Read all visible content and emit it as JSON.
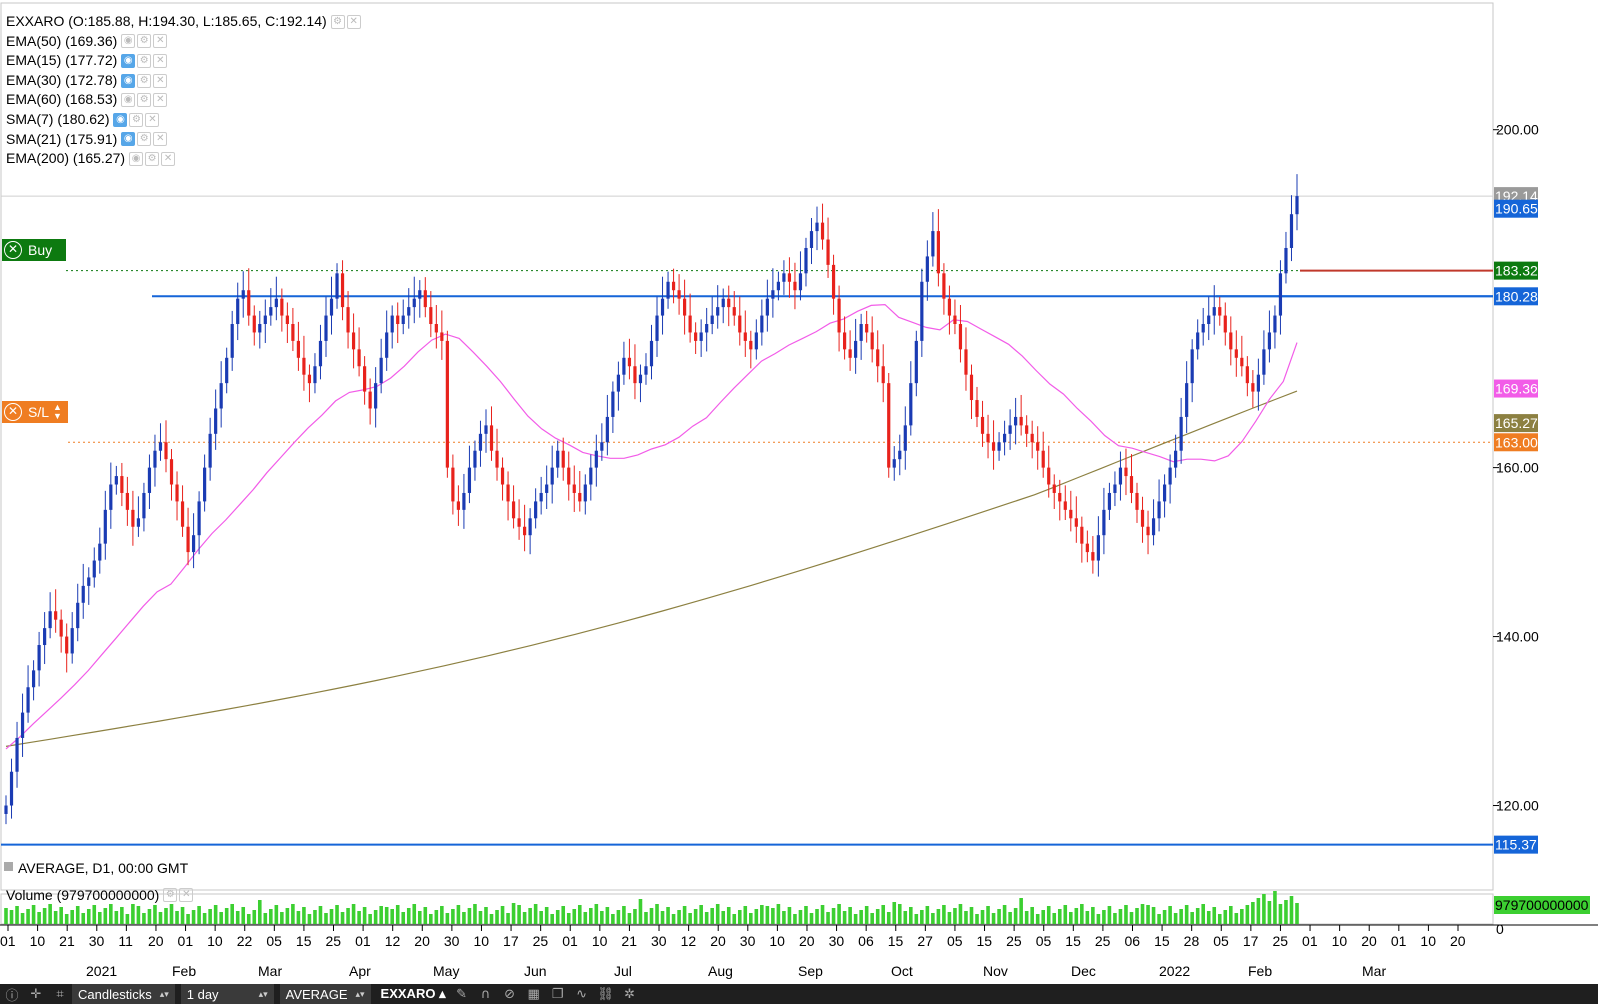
{
  "legend": {
    "main": "EXXARO (O:185.88, H:194.30, L:185.65, C:192.14)",
    "indicators": [
      {
        "label": "EMA(50) (169.36)",
        "visible": false
      },
      {
        "label": "EMA(15) (177.72)",
        "visible": true
      },
      {
        "label": "EMA(30) (172.78)",
        "visible": true
      },
      {
        "label": "EMA(60) (168.53)",
        "visible": false
      },
      {
        "label": "SMA(7) (180.62)",
        "visible": true
      },
      {
        "label": "SMA(21) (175.91)",
        "visible": true
      },
      {
        "label": "EMA(200) (165.27)",
        "visible": false
      }
    ]
  },
  "icons": {
    "eye": "eye-icon",
    "gear": "gear-icon",
    "close": "close-icon"
  },
  "tags": {
    "buy": "Buy",
    "sl": "S/L"
  },
  "footer": {
    "title": "AVERAGE, D1, 00:00 GMT",
    "volume": "Volume (979700000000)",
    "volume_axis": "979700000000",
    "volume_zero": "0"
  },
  "toolbar": {
    "chart_type": "Candlesticks",
    "interval": "1 day",
    "template": "AVERAGE",
    "symbol": "EXXARO"
  },
  "colors": {
    "up": "#1a3bb3",
    "down": "#e8221c",
    "ema50": "#f25ce8",
    "ema200": "#8c8041",
    "line_blue": "#1565d8",
    "buy": "#0d7a10",
    "sl": "#ef7d22",
    "volume": "#3ccf31"
  },
  "chart_data": {
    "type": "candlestick",
    "symbol": "EXXARO",
    "y_ticks": [
      200,
      160,
      140,
      120
    ],
    "y_tick_labels": [
      "200.00",
      "160.00",
      "140.00",
      "120.00"
    ],
    "ylim": [
      110,
      215
    ],
    "x_tick_labels": [
      "01",
      "10",
      "21",
      "30",
      "11",
      "20",
      "01",
      "10",
      "22",
      "05",
      "15",
      "25",
      "01",
      "12",
      "20",
      "30",
      "10",
      "17",
      "25",
      "01",
      "10",
      "21",
      "30",
      "12",
      "20",
      "30",
      "10",
      "20",
      "30",
      "06",
      "15",
      "27",
      "05",
      "15",
      "25",
      "05",
      "15",
      "25",
      "06",
      "15",
      "28",
      "05",
      "17",
      "25",
      "01",
      "10",
      "20",
      "01",
      "10",
      "20"
    ],
    "months": [
      "2021",
      "Feb",
      "Mar",
      "Apr",
      "May",
      "Jun",
      "Jul",
      "Aug",
      "Sep",
      "Oct",
      "Nov",
      "Dec",
      "2022",
      "Feb",
      "Mar"
    ],
    "price_levels": [
      {
        "label": "192.14",
        "value": 192.14,
        "kind": "last"
      },
      {
        "label": "190.65",
        "value": 190.65,
        "kind": "resistance"
      },
      {
        "label": "183.32",
        "value": 183.32,
        "kind": "buy"
      },
      {
        "label": "180.28",
        "value": 180.28,
        "kind": "resistance"
      },
      {
        "label": "169.36",
        "value": 169.36,
        "kind": "ema50"
      },
      {
        "label": "165.27",
        "value": 165.27,
        "kind": "ema200"
      },
      {
        "label": "163.00",
        "value": 163.0,
        "kind": "stop_loss"
      },
      {
        "label": "115.37",
        "value": 115.37,
        "kind": "support"
      }
    ],
    "closes": [
      120,
      124,
      128,
      131,
      134,
      136,
      139,
      141,
      143,
      142,
      140,
      138,
      141,
      144,
      146,
      147,
      149,
      151,
      155,
      158,
      159,
      157,
      155,
      153,
      154,
      157,
      160,
      162,
      163,
      161,
      158,
      156,
      153,
      150,
      152,
      156,
      160,
      164,
      167,
      170,
      173,
      177,
      180,
      181,
      178,
      176,
      177,
      178,
      179,
      180,
      178,
      177,
      175,
      173,
      171,
      170,
      172,
      175,
      178,
      180,
      183,
      179,
      176,
      174,
      172,
      169,
      167,
      170,
      173,
      176,
      178,
      177,
      178,
      179,
      180,
      181,
      179,
      177,
      176,
      175,
      160,
      156,
      155,
      157,
      160,
      162,
      164,
      165,
      162,
      160,
      158,
      156,
      154,
      153,
      152,
      154,
      156,
      157,
      158,
      160,
      162,
      160,
      158,
      157,
      156,
      158,
      160,
      162,
      163,
      166,
      169,
      171,
      173,
      172,
      170,
      171,
      172,
      175,
      178,
      180,
      182,
      181,
      180,
      178,
      176,
      175,
      176,
      177,
      178,
      179,
      180,
      179,
      178,
      176,
      175,
      174,
      176,
      178,
      180,
      181,
      182,
      183,
      182,
      181,
      183,
      186,
      188,
      189,
      187,
      184,
      180,
      176,
      174,
      173,
      175,
      177,
      176,
      174,
      172,
      170,
      160,
      161,
      162,
      165,
      170,
      175,
      182,
      185,
      188,
      183,
      180,
      178,
      177,
      174,
      171,
      168,
      166,
      164,
      163,
      162,
      163,
      164,
      165,
      166,
      165,
      164,
      163,
      162,
      160,
      158,
      157,
      156,
      155,
      154,
      153,
      151,
      150,
      149,
      152,
      155,
      157,
      158,
      160,
      159,
      157,
      155,
      153,
      152,
      154,
      156,
      158,
      160,
      162,
      166,
      170,
      174,
      176,
      177,
      178,
      179,
      178,
      176,
      174,
      173,
      172,
      170,
      169,
      171,
      174,
      176,
      178,
      183,
      186,
      190,
      192.14
    ],
    "ema50": [
      126.7,
      128.1,
      129.7,
      131.2,
      132.7,
      134.3,
      136.0,
      137.9,
      139.8,
      141.7,
      143.6,
      145.3,
      146.2,
      148.2,
      150.3,
      152.2,
      153.8,
      155.6,
      157.4,
      159.4,
      161.2,
      163.0,
      164.7,
      166.2,
      167.9,
      168.9,
      169.2,
      169.6,
      170.6,
      172.0,
      173.7,
      175.1,
      175.8,
      175.3,
      173.7,
      172.0,
      170.2,
      168.1,
      166.1,
      164.6,
      163.5,
      162.7,
      161.8,
      161.4,
      161.1,
      161.1,
      161.5,
      162.2,
      162.7,
      163.6,
      164.9,
      165.9,
      167.7,
      169.4,
      171.0,
      172.6,
      173.5,
      174.5,
      175.3,
      176.1,
      177.1,
      177.6,
      178.5,
      179.2,
      179.3,
      177.8,
      177.2,
      176.6,
      176.3,
      177.5,
      177.3,
      176.4,
      175.5,
      174.6,
      173.2,
      171.5,
      169.9,
      168.7,
      167.0,
      165.5,
      163.8,
      162.6,
      162.3,
      161.8,
      161.3,
      160.7,
      161.0,
      161.0,
      160.8,
      161.4,
      163.1,
      165.5,
      168.1,
      170.2,
      174.8
    ]
  }
}
